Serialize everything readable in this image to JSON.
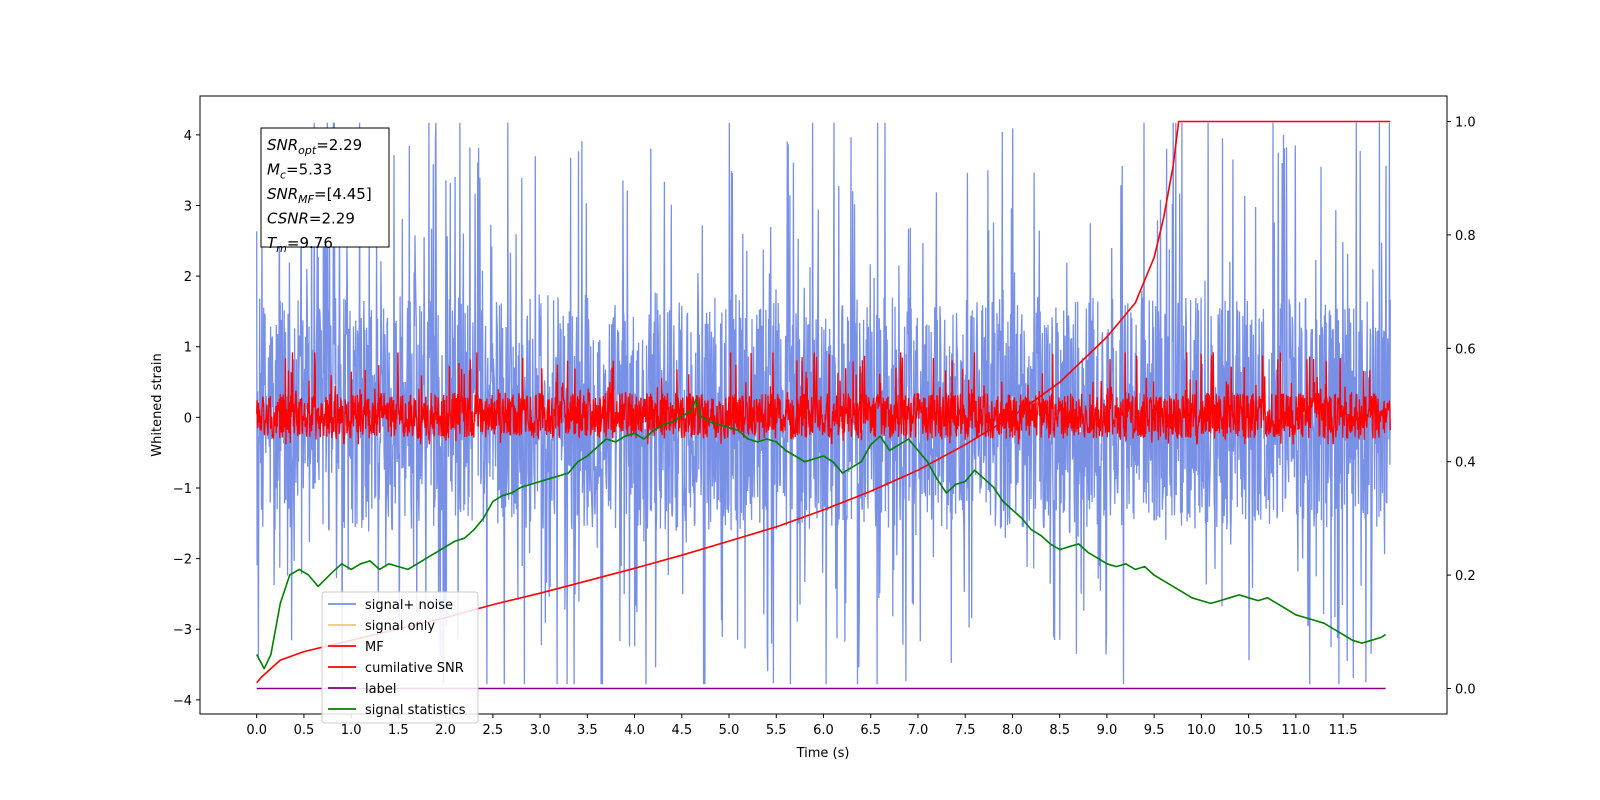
{
  "chart_data": {
    "type": "line",
    "title": "",
    "xlabel": "Time (s)",
    "ylabel": "Whitened strain",
    "xlim": [
      -0.6,
      12.6
    ],
    "ylim": [
      -4.2,
      4.55
    ],
    "y2lim": [
      -0.045,
      1.045
    ],
    "x_ticks": [
      "0.0",
      "0.5",
      "1.0",
      "1.5",
      "2.0",
      "2.5",
      "3.0",
      "3.5",
      "4.0",
      "4.5",
      "5.0",
      "5.5",
      "6.0",
      "6.5",
      "7.0",
      "7.5",
      "8.0",
      "8.5",
      "9.0",
      "9.5",
      "10.0",
      "10.5",
      "11.0",
      "11.5"
    ],
    "y_ticks": [
      -4,
      -3,
      -2,
      -1,
      0,
      1,
      2,
      3,
      4
    ],
    "y_tick_labels": [
      "−4",
      "−3",
      "−2",
      "−1",
      "0",
      "1",
      "2",
      "3",
      "4"
    ],
    "y2_ticks": [
      0.0,
      0.2,
      0.4,
      0.6,
      0.8,
      1.0
    ],
    "y2_tick_labels": [
      "0.0",
      "0.2",
      "0.4",
      "0.6",
      "0.8",
      "1.0"
    ],
    "grid": false,
    "legend_position": "bottom-left",
    "annotation": {
      "lines": [
        {
          "base": "SNR",
          "sub": "opt",
          "value": "=2.29"
        },
        {
          "base": "M",
          "sub": "c",
          "value": "=5.33"
        },
        {
          "base": "SNR",
          "sub": "MF",
          "value": "=[4.45]"
        },
        {
          "base": "CSNR",
          "sub": "",
          "value": "=2.29"
        },
        {
          "base": "T",
          "sub": "m",
          "value": "=9.76"
        }
      ]
    },
    "series": [
      {
        "name": "signal+ noise",
        "color": "#7890e6",
        "axis": "left",
        "style": "noise",
        "x_range": [
          0,
          12
        ],
        "typical_band": [
          -1.6,
          1.7
        ],
        "extremes": {
          "max": 4.17,
          "max_at": 6.57,
          "min": -3.78,
          "min_at": 6.57
        }
      },
      {
        "name": "signal only",
        "color": "#f5c57a",
        "axis": "left",
        "style": "line",
        "values": []
      },
      {
        "name": "MF",
        "color": "#ff0000",
        "axis": "left",
        "style": "noise",
        "x_range": [
          0,
          12
        ],
        "typical_band": [
          -0.3,
          0.35
        ],
        "extremes": {
          "max": 0.92,
          "min": -0.38
        }
      },
      {
        "name": "cumilative SNR",
        "color": "#ff0000",
        "axis": "right",
        "style": "line",
        "x": [
          0,
          0.05,
          0.25,
          0.5,
          1.0,
          1.5,
          2.0,
          2.5,
          3.0,
          3.5,
          4.0,
          4.5,
          5.0,
          5.5,
          6.0,
          6.5,
          7.0,
          7.5,
          8.0,
          8.5,
          9.0,
          9.3,
          9.5,
          9.6,
          9.7,
          9.76,
          12.0
        ],
        "y": [
          0.01,
          0.02,
          0.05,
          0.065,
          0.085,
          0.105,
          0.125,
          0.148,
          0.168,
          0.19,
          0.212,
          0.235,
          0.26,
          0.285,
          0.315,
          0.348,
          0.385,
          0.43,
          0.48,
          0.54,
          0.62,
          0.68,
          0.76,
          0.83,
          0.92,
          1.0,
          1.0
        ]
      },
      {
        "name": "label",
        "color": "#800080",
        "axis": "right",
        "style": "line",
        "x": [
          0,
          11.95
        ],
        "y": [
          0.0,
          0.0
        ]
      },
      {
        "name": "signal statistics",
        "color": "#008000",
        "axis": "right",
        "style": "line",
        "x": [
          0.0,
          0.08,
          0.15,
          0.25,
          0.35,
          0.45,
          0.55,
          0.65,
          0.8,
          0.9,
          1.0,
          1.1,
          1.2,
          1.3,
          1.4,
          1.5,
          1.6,
          1.7,
          1.8,
          1.9,
          2.0,
          2.1,
          2.2,
          2.3,
          2.4,
          2.5,
          2.6,
          2.7,
          2.8,
          2.9,
          3.0,
          3.1,
          3.2,
          3.3,
          3.4,
          3.5,
          3.6,
          3.7,
          3.8,
          3.9,
          4.0,
          4.1,
          4.2,
          4.3,
          4.4,
          4.5,
          4.6,
          4.65,
          4.7,
          4.8,
          4.9,
          5.0,
          5.1,
          5.2,
          5.3,
          5.4,
          5.5,
          5.6,
          5.7,
          5.8,
          5.9,
          6.0,
          6.1,
          6.2,
          6.3,
          6.4,
          6.5,
          6.6,
          6.7,
          6.8,
          6.9,
          7.0,
          7.1,
          7.2,
          7.3,
          7.4,
          7.5,
          7.6,
          7.7,
          7.8,
          7.9,
          8.0,
          8.1,
          8.2,
          8.3,
          8.4,
          8.5,
          8.6,
          8.7,
          8.8,
          8.9,
          9.0,
          9.1,
          9.2,
          9.3,
          9.4,
          9.5,
          9.6,
          9.7,
          9.8,
          9.9,
          10.0,
          10.1,
          10.2,
          10.3,
          10.4,
          10.5,
          10.6,
          10.7,
          10.8,
          10.9,
          11.0,
          11.1,
          11.2,
          11.3,
          11.4,
          11.5,
          11.6,
          11.7,
          11.8,
          11.9,
          11.95
        ],
        "y": [
          0.06,
          0.035,
          0.06,
          0.15,
          0.2,
          0.21,
          0.2,
          0.18,
          0.205,
          0.22,
          0.21,
          0.22,
          0.225,
          0.21,
          0.22,
          0.215,
          0.21,
          0.22,
          0.23,
          0.24,
          0.25,
          0.26,
          0.265,
          0.28,
          0.3,
          0.33,
          0.34,
          0.345,
          0.355,
          0.36,
          0.365,
          0.37,
          0.375,
          0.38,
          0.4,
          0.41,
          0.425,
          0.44,
          0.435,
          0.445,
          0.45,
          0.44,
          0.455,
          0.465,
          0.47,
          0.48,
          0.49,
          0.51,
          0.48,
          0.47,
          0.465,
          0.46,
          0.455,
          0.44,
          0.435,
          0.44,
          0.435,
          0.42,
          0.41,
          0.4,
          0.405,
          0.41,
          0.4,
          0.38,
          0.39,
          0.4,
          0.43,
          0.445,
          0.42,
          0.43,
          0.44,
          0.42,
          0.4,
          0.37,
          0.345,
          0.36,
          0.365,
          0.385,
          0.37,
          0.355,
          0.33,
          0.315,
          0.3,
          0.28,
          0.27,
          0.255,
          0.245,
          0.25,
          0.255,
          0.24,
          0.23,
          0.22,
          0.215,
          0.22,
          0.21,
          0.215,
          0.2,
          0.19,
          0.18,
          0.17,
          0.16,
          0.155,
          0.15,
          0.155,
          0.16,
          0.165,
          0.16,
          0.155,
          0.16,
          0.15,
          0.14,
          0.13,
          0.125,
          0.12,
          0.115,
          0.105,
          0.095,
          0.085,
          0.08,
          0.085,
          0.09,
          0.095
        ]
      }
    ]
  }
}
